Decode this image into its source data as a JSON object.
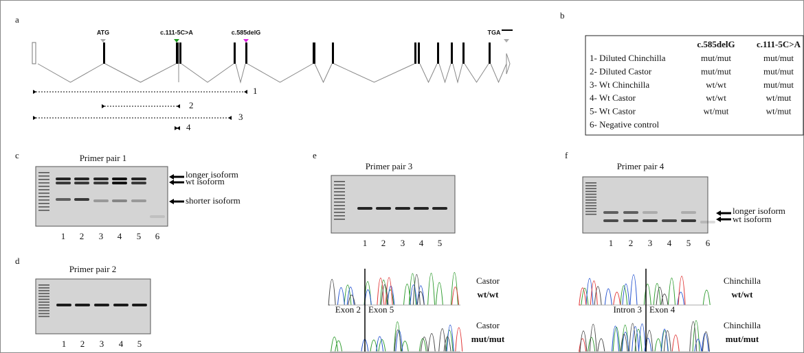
{
  "panel_a": {
    "label": "a",
    "markers": [
      "ATG",
      "c.111-5C>A",
      "c.585delG",
      "TGA"
    ],
    "primers": [
      "1",
      "2",
      "3",
      "4"
    ]
  },
  "panel_b": {
    "label": "b",
    "table": {
      "header": [
        "c.585delG",
        "c.111-5C>A"
      ],
      "rows": [
        [
          "1- Diluted Chinchilla",
          "mut/mut",
          "mut/mut"
        ],
        [
          "2- Diluted Castor",
          "mut/mut",
          "mut/mut"
        ],
        [
          "3- Wt Chinchilla",
          "wt/wt",
          "mut/mut"
        ],
        [
          "4- Wt Castor",
          "wt/wt",
          "wt/mut"
        ],
        [
          "5- Wt Castor",
          "wt/mut",
          "wt/mut"
        ],
        [
          "6- Negative control"
        ]
      ]
    }
  },
  "panel_c": {
    "label": "c",
    "title": "Primer pair 1",
    "lanes": [
      "1",
      "2",
      "3",
      "4",
      "5",
      "6"
    ],
    "arrows": [
      "longer isoform",
      "wt isoform",
      "shorter isoform"
    ]
  },
  "panel_d": {
    "label": "d",
    "title": "Primer pair 2",
    "lanes": [
      "1",
      "2",
      "3",
      "4",
      "5"
    ]
  },
  "panel_e": {
    "label": "e",
    "title": "Primer pair 3",
    "lanes": [
      "1",
      "2",
      "3",
      "4",
      "5"
    ],
    "traces": [
      {
        "sample": "Castor",
        "genotype": "wt/wt"
      },
      {
        "sample": "Castor",
        "genotype": "mut/mut"
      }
    ],
    "junction": [
      "Exon 2",
      "Exon 5"
    ]
  },
  "panel_f": {
    "label": "f",
    "title": "Primer pair 4",
    "lanes": [
      "1",
      "2",
      "3",
      "4",
      "5",
      "6"
    ],
    "arrows": [
      "longer isoform",
      "wt isoform"
    ],
    "traces": [
      {
        "sample": "Chinchilla",
        "genotype": "wt/wt"
      },
      {
        "sample": "Chinchilla",
        "genotype": "mut/mut"
      }
    ],
    "junction": [
      "Intron 3",
      "Exon 4"
    ]
  }
}
